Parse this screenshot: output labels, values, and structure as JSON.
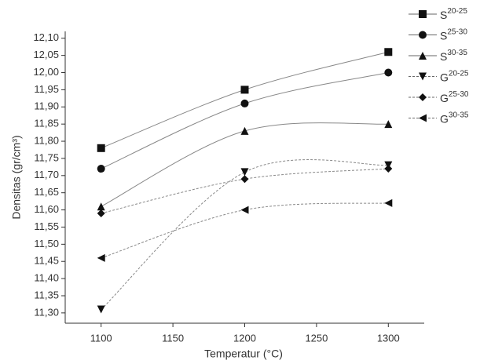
{
  "chart_data": {
    "type": "scatter",
    "x_label": "Temperatur (°C)",
    "y_label": "Densitas (gr/cm³)",
    "x": [
      1100,
      1200,
      1300
    ],
    "xlim": [
      1075,
      1325
    ],
    "xticks": [
      1100,
      1150,
      1200,
      1250,
      1300
    ],
    "ylim": [
      11.27,
      12.12
    ],
    "yticks": [
      {
        "value": 11.3,
        "label": "11,30"
      },
      {
        "value": 11.35,
        "label": "11,35"
      },
      {
        "value": 11.4,
        "label": "11,40"
      },
      {
        "value": 11.45,
        "label": "11,45"
      },
      {
        "value": 11.5,
        "label": "11,50"
      },
      {
        "value": 11.55,
        "label": "11,55"
      },
      {
        "value": 11.6,
        "label": "11,60"
      },
      {
        "value": 11.65,
        "label": "11,65"
      },
      {
        "value": 11.7,
        "label": "11,70"
      },
      {
        "value": 11.75,
        "label": "11,75"
      },
      {
        "value": 11.8,
        "label": "11,80"
      },
      {
        "value": 11.85,
        "label": "11,85"
      },
      {
        "value": 11.9,
        "label": "11,90"
      },
      {
        "value": 11.95,
        "label": "11,95"
      },
      {
        "value": 12.0,
        "label": "12,00"
      },
      {
        "value": 12.05,
        "label": "12,05"
      },
      {
        "value": 12.1,
        "label": "12,10"
      }
    ],
    "series": [
      {
        "name": "S20-25",
        "marker": "square",
        "line": "solid",
        "color": "#111111",
        "values": [
          11.78,
          11.95,
          12.06
        ]
      },
      {
        "name": "S25-30",
        "marker": "circle",
        "line": "solid",
        "color": "#111111",
        "values": [
          11.72,
          11.91,
          12.0
        ]
      },
      {
        "name": "S30-35",
        "marker": "triangle-up",
        "line": "solid",
        "color": "#111111",
        "values": [
          11.61,
          11.83,
          11.85
        ]
      },
      {
        "name": "G20-25",
        "marker": "triangle-down",
        "line": "dashed",
        "color": "#111111",
        "values": [
          11.31,
          11.71,
          11.73
        ]
      },
      {
        "name": "G25-30",
        "marker": "diamond",
        "line": "dashed",
        "color": "#111111",
        "values": [
          11.59,
          11.69,
          11.72
        ]
      },
      {
        "name": "G30-35",
        "marker": "triangle-left",
        "line": "dashed",
        "color": "#111111",
        "values": [
          11.46,
          11.6,
          11.62
        ]
      }
    ]
  }
}
